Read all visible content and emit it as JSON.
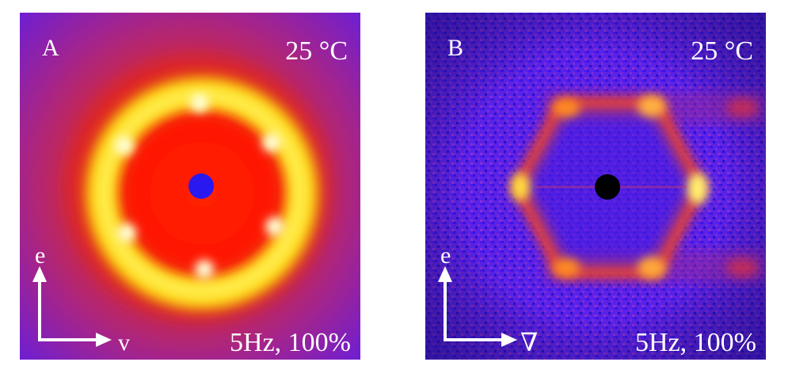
{
  "panels": [
    {
      "letter": "A",
      "temperature": "25 °C",
      "conditions": "5Hz, 100%",
      "vertical_axis": "e",
      "horizontal_axis": "v",
      "pattern": "ring",
      "spots": 6
    },
    {
      "letter": "B",
      "temperature": "25 °C",
      "conditions": "5Hz, 100%",
      "vertical_axis": "e",
      "horizontal_axis": "∇",
      "pattern": "hexagon",
      "spots": 6
    }
  ],
  "colors": {
    "background_a": "#7d1fd0",
    "background_b": "#5a1ef0",
    "ring_red": "#ff1a00",
    "ring_yellow": "#ffff66",
    "beam_stop_a": "#2b1cff",
    "beam_stop_b": "#000000",
    "text": "#ffffff"
  }
}
